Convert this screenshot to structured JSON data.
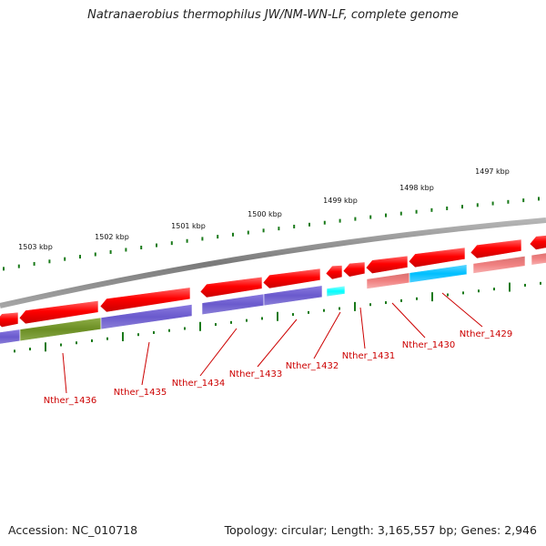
{
  "title": "Natranaerobius thermophilus JW/NM-WN-LF, complete genome",
  "footer": {
    "accession": "Accession: NC_010718",
    "summary": "Topology: circular; Length: 3,165,557 bp; Genes: 2,946"
  },
  "ruler_labels": [
    "1503 kbp",
    "1502 kbp",
    "1501 kbp",
    "1500 kbp",
    "1499 kbp",
    "1498 kbp",
    "1497 kbp"
  ],
  "gene_labels": [
    "Nther_1436",
    "Nther_1435",
    "Nther_1434",
    "Nther_1433",
    "Nther_1432",
    "Nther_1431",
    "Nther_1430",
    "Nther_1429"
  ],
  "colors": {
    "cds_forward": "#ff0000",
    "cds_reverse_band": "#f08080",
    "cog_purple": "#6a5acd",
    "cog_olive": "#6b8e23",
    "cog_blue": "#00bfff",
    "cog_cyan": "#00ffff",
    "backbone": "#8c8c8c",
    "ruler_ticks": "#1a7a1a",
    "gene_label": "#cc0000"
  }
}
